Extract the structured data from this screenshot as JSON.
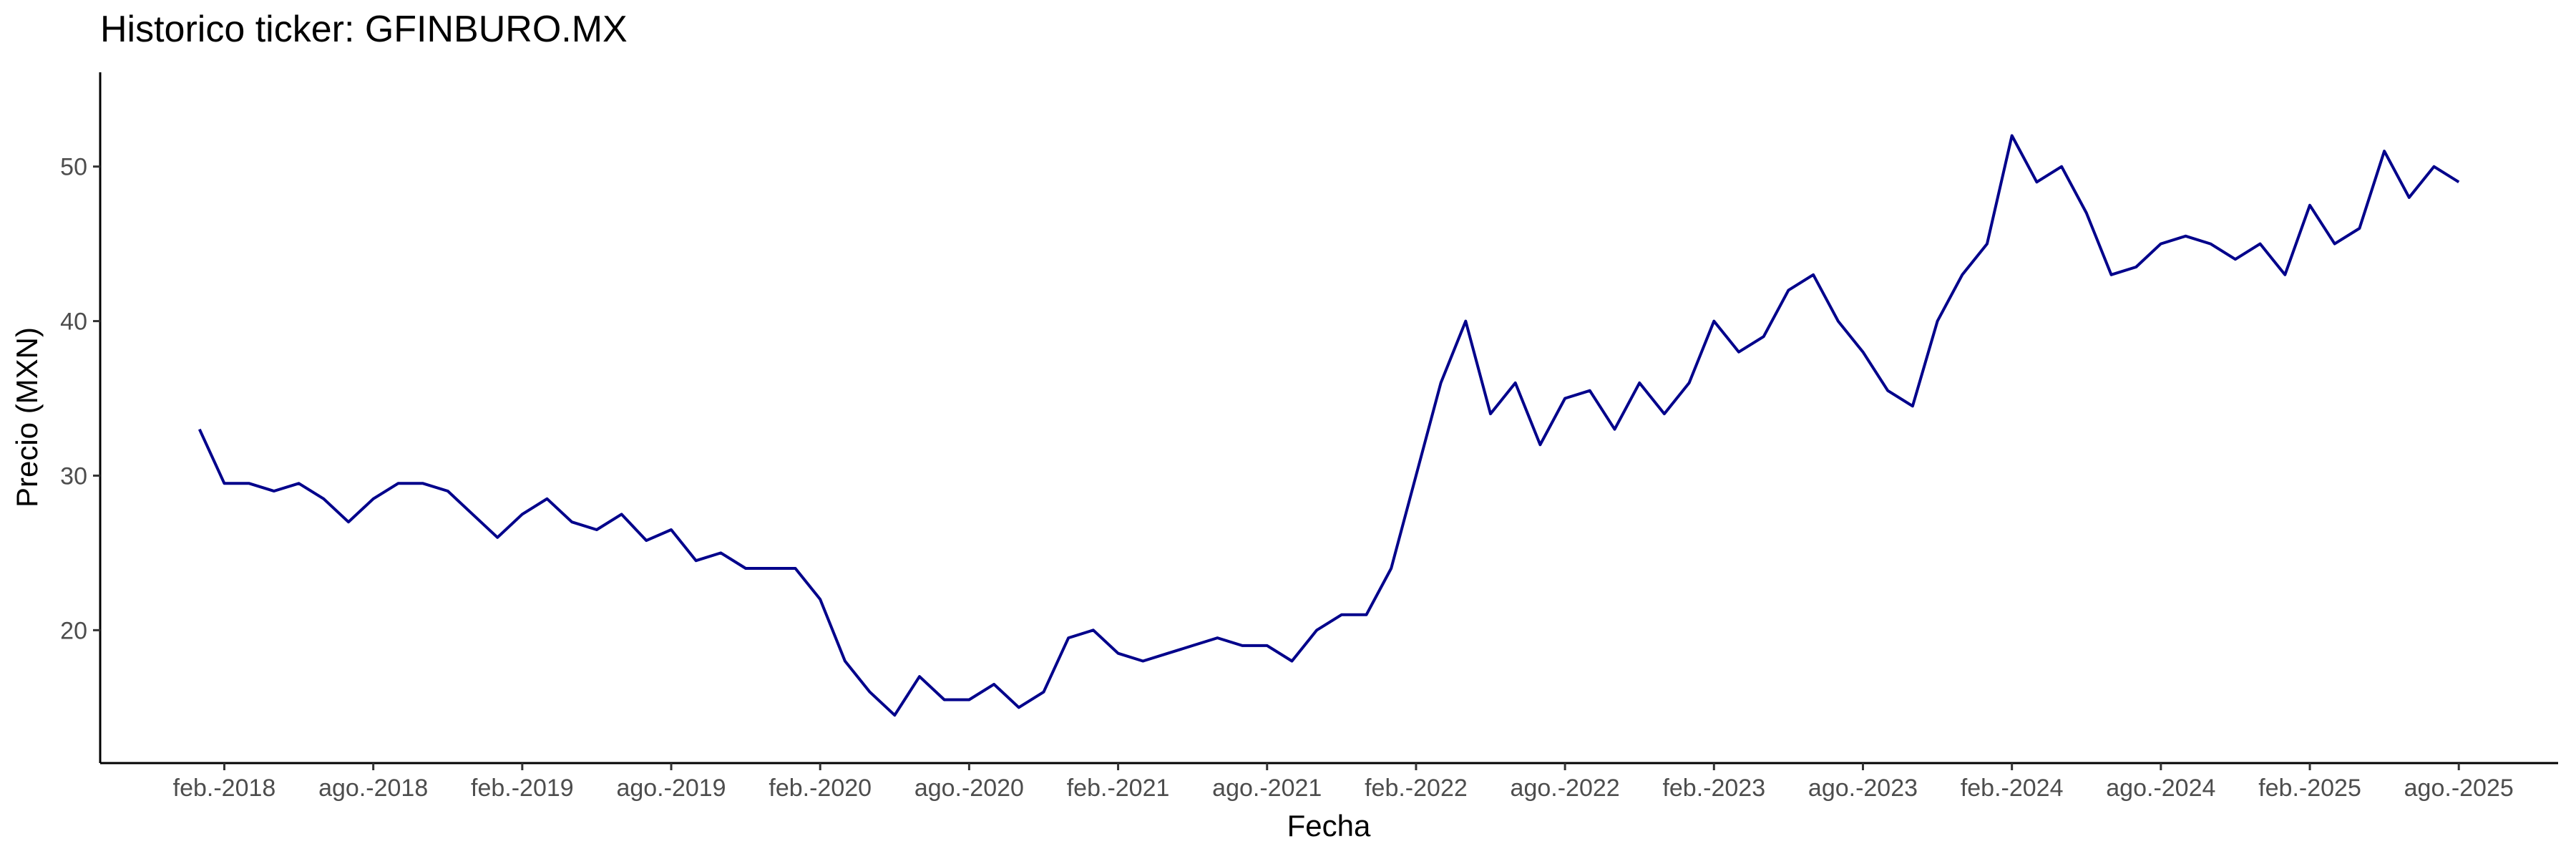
{
  "chart_data": {
    "type": "line",
    "title": "Historico ticker: GFINBURO.MX",
    "x_label": "Fecha",
    "y_label": "Precio (MXN)",
    "x": [
      "2018-01",
      "2018-02",
      "2018-03",
      "2018-04",
      "2018-05",
      "2018-06",
      "2018-07",
      "2018-08",
      "2018-09",
      "2018-10",
      "2018-11",
      "2018-12",
      "2019-01",
      "2019-02",
      "2019-03",
      "2019-04",
      "2019-05",
      "2019-06",
      "2019-07",
      "2019-08",
      "2019-09",
      "2019-10",
      "2019-11",
      "2019-12",
      "2020-01",
      "2020-02",
      "2020-03",
      "2020-04",
      "2020-05",
      "2020-06",
      "2020-07",
      "2020-08",
      "2020-09",
      "2020-10",
      "2020-11",
      "2020-12",
      "2021-01",
      "2021-02",
      "2021-03",
      "2021-04",
      "2021-05",
      "2021-06",
      "2021-07",
      "2021-08",
      "2021-09",
      "2021-10",
      "2021-11",
      "2021-12",
      "2022-01",
      "2022-02",
      "2022-03",
      "2022-04",
      "2022-05",
      "2022-06",
      "2022-07",
      "2022-08",
      "2022-09",
      "2022-10",
      "2022-11",
      "2022-12",
      "2023-01",
      "2023-02",
      "2023-03",
      "2023-04",
      "2023-05",
      "2023-06",
      "2023-07",
      "2023-08",
      "2023-09",
      "2023-10",
      "2023-11",
      "2023-12",
      "2024-01",
      "2024-02",
      "2024-03",
      "2024-04",
      "2024-05",
      "2024-06",
      "2024-07",
      "2024-08",
      "2024-09",
      "2024-10",
      "2024-11",
      "2024-12",
      "2025-01",
      "2025-02",
      "2025-03",
      "2025-04",
      "2025-05",
      "2025-06",
      "2025-07",
      "2025-08"
    ],
    "series": [
      {
        "name": "GFINBURO.MX",
        "color": "#00008b",
        "values": [
          33,
          29.5,
          29.5,
          29,
          29.5,
          28.5,
          27,
          28.5,
          29.5,
          29.5,
          29,
          27.5,
          26,
          27.5,
          28.5,
          27,
          26.5,
          27.5,
          25.8,
          26.5,
          24.5,
          25,
          24,
          24,
          24,
          22,
          18,
          16,
          14.5,
          17,
          15.5,
          15.5,
          16.5,
          15,
          16,
          19.5,
          20,
          18.5,
          18,
          18.5,
          19,
          19.5,
          19,
          19,
          18,
          20,
          21,
          21,
          24,
          30,
          36,
          40,
          34,
          36,
          32,
          35,
          35.5,
          33,
          36,
          34,
          36,
          40,
          38,
          39,
          42,
          43,
          40,
          38,
          35.5,
          34.5,
          40,
          43,
          45,
          52,
          49,
          50,
          47,
          43,
          43.5,
          45,
          45.5,
          45,
          44,
          45,
          43,
          47.5,
          45,
          46,
          51,
          48,
          50,
          49
        ]
      }
    ],
    "xlim": [
      "2017-09",
      "2025-12"
    ],
    "xticks": [
      {
        "value": "2018-02",
        "label": "feb.-2018"
      },
      {
        "value": "2018-08",
        "label": "ago.-2018"
      },
      {
        "value": "2019-02",
        "label": "feb.-2019"
      },
      {
        "value": "2019-08",
        "label": "ago.-2019"
      },
      {
        "value": "2020-02",
        "label": "feb.-2020"
      },
      {
        "value": "2020-08",
        "label": "ago.-2020"
      },
      {
        "value": "2021-02",
        "label": "feb.-2021"
      },
      {
        "value": "2021-08",
        "label": "ago.-2021"
      },
      {
        "value": "2022-02",
        "label": "feb.-2022"
      },
      {
        "value": "2022-08",
        "label": "ago.-2022"
      },
      {
        "value": "2023-02",
        "label": "feb.-2023"
      },
      {
        "value": "2023-08",
        "label": "ago.-2023"
      },
      {
        "value": "2024-02",
        "label": "feb.-2024"
      },
      {
        "value": "2024-08",
        "label": "ago.-2024"
      },
      {
        "value": "2025-02",
        "label": "feb.-2025"
      },
      {
        "value": "2025-08",
        "label": "ago.-2025"
      }
    ],
    "ylim": [
      11.4,
      56.1
    ],
    "yticks": [
      20,
      30,
      40,
      50
    ],
    "grid": false
  }
}
